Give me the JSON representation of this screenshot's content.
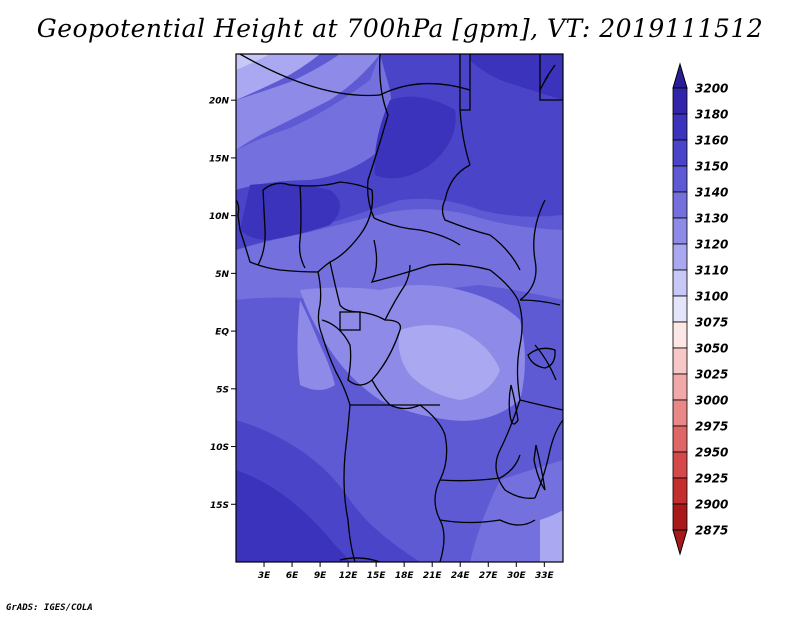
{
  "title": "Geopotential Height at 700hPa [gpm], VT: 2019111512",
  "credit": "GrADS: IGES/COLA",
  "map": {
    "lon_range": [
      0,
      35
    ],
    "lat_range": [
      -20,
      24
    ],
    "lat_ticks": [
      {
        "value": 20,
        "label": "20N"
      },
      {
        "value": 15,
        "label": "15N"
      },
      {
        "value": 10,
        "label": "10N"
      },
      {
        "value": 5,
        "label": "5N"
      },
      {
        "value": 0,
        "label": "EQ"
      },
      {
        "value": -5,
        "label": "5S"
      },
      {
        "value": -10,
        "label": "10S"
      },
      {
        "value": -15,
        "label": "15S"
      }
    ],
    "lon_ticks": [
      {
        "value": 3,
        "label": "3E"
      },
      {
        "value": 6,
        "label": "6E"
      },
      {
        "value": 9,
        "label": "9E"
      },
      {
        "value": 12,
        "label": "12E"
      },
      {
        "value": 15,
        "label": "15E"
      },
      {
        "value": 18,
        "label": "18E"
      },
      {
        "value": 21,
        "label": "21E"
      },
      {
        "value": 24,
        "label": "24E"
      },
      {
        "value": 27,
        "label": "27E"
      },
      {
        "value": 30,
        "label": "30E"
      },
      {
        "value": 33,
        "label": "33E"
      }
    ]
  },
  "colorbar": {
    "levels": [
      "3200",
      "3180",
      "3160",
      "3150",
      "3140",
      "3130",
      "3120",
      "3110",
      "3100",
      "3075",
      "3050",
      "3025",
      "3000",
      "2975",
      "2950",
      "2925",
      "2900",
      "2875"
    ],
    "colors": [
      "#2a1d96",
      "#3225aa",
      "#3b33bb",
      "#4a44c8",
      "#5e5ad4",
      "#7470de",
      "#8e8ae8",
      "#aaa8f0",
      "#c8c8f6",
      "#e4e4fa",
      "#fde6e6",
      "#f8c8c8",
      "#f0a8a8",
      "#e88888",
      "#de6666",
      "#d44a4a",
      "#c42e2e",
      "#a81a1a"
    ]
  }
}
